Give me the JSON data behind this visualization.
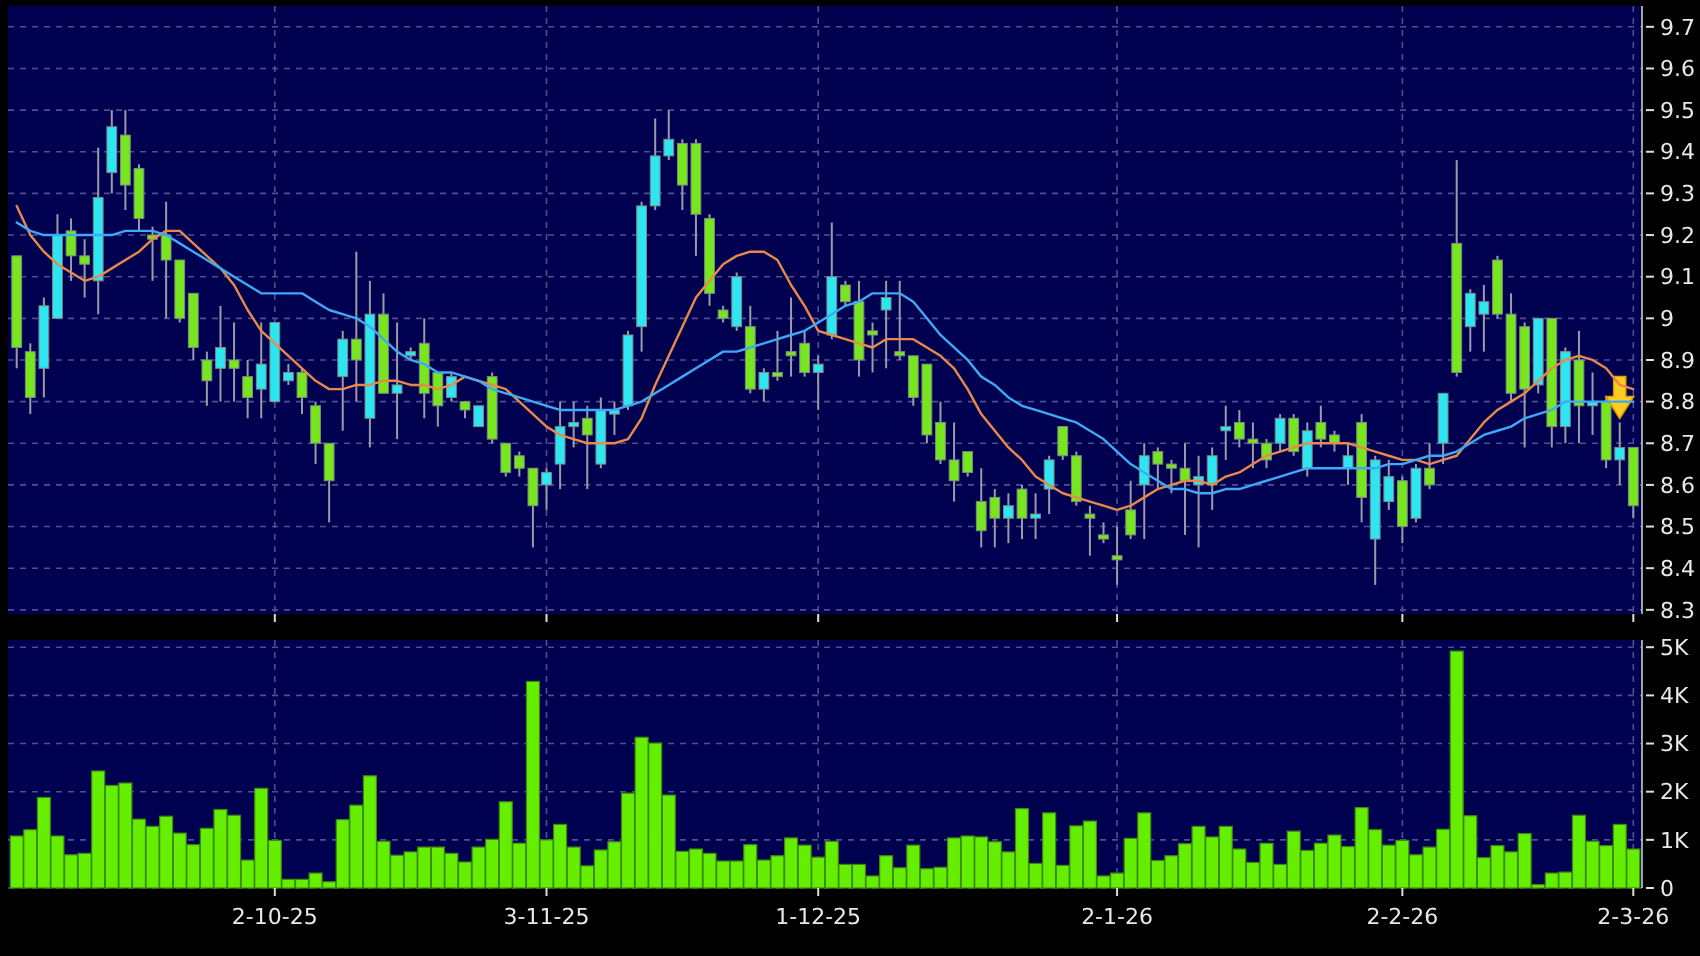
{
  "chart_data": [
    {
      "type": "candlestick",
      "categories": [
        null,
        null,
        null,
        null,
        null,
        null,
        null,
        null,
        null,
        null,
        null,
        null,
        null,
        null,
        null,
        null,
        null,
        null,
        null,
        null,
        null,
        null,
        null,
        null,
        null,
        null,
        null,
        null,
        null,
        null,
        null,
        null,
        null,
        null,
        null,
        null,
        null,
        null,
        null,
        null,
        null,
        null,
        null,
        null,
        null,
        null,
        null,
        null,
        null,
        null,
        null,
        null,
        null,
        null,
        null,
        null,
        null,
        null,
        null,
        null,
        null,
        null,
        null,
        null,
        null,
        null,
        null,
        null,
        null,
        null,
        null,
        null,
        null,
        null,
        null,
        null,
        null,
        null,
        null,
        null,
        null,
        null,
        null,
        null,
        null,
        null,
        null,
        null,
        null,
        null,
        null,
        null,
        null,
        null,
        null,
        null,
        null,
        null,
        null,
        null,
        null,
        null,
        null,
        null,
        null,
        null,
        null,
        null,
        null,
        null,
        null,
        null,
        null,
        null,
        null,
        null,
        null,
        null,
        null,
        null
      ],
      "ohlc": [
        [
          9.15,
          9.15,
          8.88,
          8.93
        ],
        [
          8.92,
          8.94,
          8.77,
          8.81
        ],
        [
          8.88,
          9.05,
          8.81,
          9.03
        ],
        [
          9.0,
          9.25,
          9.0,
          9.2
        ],
        [
          9.21,
          9.24,
          9.09,
          9.15
        ],
        [
          9.15,
          9.19,
          9.05,
          9.13
        ],
        [
          9.09,
          9.41,
          9.01,
          9.29
        ],
        [
          9.35,
          9.5,
          9.3,
          9.46
        ],
        [
          9.44,
          9.5,
          9.26,
          9.32
        ],
        [
          9.36,
          9.37,
          9.21,
          9.24
        ],
        [
          9.2,
          9.22,
          9.09,
          9.19
        ],
        [
          9.2,
          9.28,
          9.0,
          9.14
        ],
        [
          9.14,
          9.14,
          8.99,
          9.0
        ],
        [
          9.06,
          9.06,
          8.9,
          8.93
        ],
        [
          8.9,
          8.92,
          8.79,
          8.85
        ],
        [
          8.88,
          9.03,
          8.8,
          8.93
        ],
        [
          8.9,
          8.99,
          8.8,
          8.88
        ],
        [
          8.86,
          8.9,
          8.76,
          8.81
        ],
        [
          8.83,
          8.99,
          8.76,
          8.89
        ],
        [
          8.8,
          8.99,
          8.8,
          8.99
        ],
        [
          8.85,
          8.89,
          8.84,
          8.87
        ],
        [
          8.87,
          8.88,
          8.77,
          8.81
        ],
        [
          8.79,
          8.8,
          8.65,
          8.7
        ],
        [
          8.7,
          8.7,
          8.51,
          8.61
        ],
        [
          8.86,
          8.97,
          8.73,
          8.95
        ],
        [
          8.95,
          9.16,
          8.8,
          8.9
        ],
        [
          8.76,
          9.09,
          8.69,
          9.01
        ],
        [
          9.01,
          9.06,
          8.82,
          8.82
        ],
        [
          8.82,
          8.99,
          8.71,
          8.84
        ],
        [
          8.91,
          8.93,
          8.9,
          8.92
        ],
        [
          8.94,
          9.0,
          8.76,
          8.82
        ],
        [
          8.87,
          8.87,
          8.74,
          8.79
        ],
        [
          8.81,
          8.87,
          8.8,
          8.86
        ],
        [
          8.8,
          8.8,
          8.76,
          8.78
        ],
        [
          8.74,
          8.79,
          8.74,
          8.79
        ],
        [
          8.86,
          8.87,
          8.7,
          8.71
        ],
        [
          8.7,
          8.7,
          8.62,
          8.63
        ],
        [
          8.67,
          8.68,
          8.62,
          8.64
        ],
        [
          8.64,
          8.64,
          8.45,
          8.55
        ],
        [
          8.6,
          8.64,
          8.54,
          8.63
        ],
        [
          8.65,
          8.8,
          8.59,
          8.74
        ],
        [
          8.74,
          8.8,
          8.69,
          8.75
        ],
        [
          8.76,
          8.79,
          8.59,
          8.72
        ],
        [
          8.65,
          8.81,
          8.64,
          8.78
        ],
        [
          8.77,
          8.8,
          8.72,
          8.78
        ],
        [
          8.79,
          8.97,
          8.78,
          8.96
        ],
        [
          8.98,
          9.28,
          8.92,
          9.27
        ],
        [
          9.27,
          9.48,
          9.26,
          9.39
        ],
        [
          9.39,
          9.5,
          9.38,
          9.43
        ],
        [
          9.42,
          9.43,
          9.26,
          9.32
        ],
        [
          9.42,
          9.43,
          9.15,
          9.25
        ],
        [
          9.24,
          9.25,
          9.03,
          9.06
        ],
        [
          9.02,
          9.03,
          8.99,
          9.0
        ],
        [
          8.98,
          9.11,
          8.97,
          9.1
        ],
        [
          8.98,
          9.03,
          8.82,
          8.83
        ],
        [
          8.83,
          8.88,
          8.8,
          8.87
        ],
        [
          8.87,
          8.97,
          8.85,
          8.86
        ],
        [
          8.92,
          9.05,
          8.86,
          8.91
        ],
        [
          8.94,
          8.97,
          8.86,
          8.87
        ],
        [
          8.87,
          8.91,
          8.78,
          8.89
        ],
        [
          8.96,
          9.23,
          8.95,
          9.1
        ],
        [
          9.08,
          9.09,
          9.03,
          9.04
        ],
        [
          9.04,
          9.09,
          8.86,
          8.9
        ],
        [
          8.97,
          8.99,
          8.87,
          8.96
        ],
        [
          9.02,
          9.09,
          8.88,
          9.05
        ],
        [
          8.92,
          9.09,
          8.9,
          8.91
        ],
        [
          8.91,
          8.91,
          8.79,
          8.81
        ],
        [
          8.89,
          8.89,
          8.7,
          8.72
        ],
        [
          8.75,
          8.8,
          8.65,
          8.66
        ],
        [
          8.66,
          8.75,
          8.56,
          8.61
        ],
        [
          8.68,
          8.68,
          8.62,
          8.63
        ],
        [
          8.56,
          8.64,
          8.45,
          8.49
        ],
        [
          8.57,
          8.59,
          8.45,
          8.52
        ],
        [
          8.52,
          8.58,
          8.46,
          8.55
        ],
        [
          8.59,
          8.6,
          8.47,
          8.52
        ],
        [
          8.52,
          8.58,
          8.47,
          8.53
        ],
        [
          8.59,
          8.67,
          8.53,
          8.66
        ],
        [
          8.74,
          8.74,
          8.66,
          8.67
        ],
        [
          8.67,
          8.68,
          8.55,
          8.56
        ],
        [
          8.53,
          8.55,
          8.43,
          8.52
        ],
        [
          8.48,
          8.51,
          8.46,
          8.47
        ],
        [
          8.43,
          8.5,
          8.36,
          8.42
        ],
        [
          8.54,
          8.61,
          8.47,
          8.48
        ],
        [
          8.6,
          8.7,
          8.47,
          8.67
        ],
        [
          8.68,
          8.69,
          8.59,
          8.65
        ],
        [
          8.65,
          8.66,
          8.58,
          8.64
        ],
        [
          8.64,
          8.7,
          8.48,
          8.61
        ],
        [
          8.6,
          8.67,
          8.45,
          8.62
        ],
        [
          8.6,
          8.69,
          8.54,
          8.67
        ],
        [
          8.73,
          8.79,
          8.66,
          8.74
        ],
        [
          8.75,
          8.78,
          8.69,
          8.71
        ],
        [
          8.71,
          8.75,
          8.64,
          8.7
        ],
        [
          8.7,
          8.71,
          8.64,
          8.66
        ],
        [
          8.7,
          8.77,
          8.68,
          8.76
        ],
        [
          8.76,
          8.77,
          8.67,
          8.68
        ],
        [
          8.64,
          8.75,
          8.62,
          8.73
        ],
        [
          8.75,
          8.79,
          8.69,
          8.71
        ],
        [
          8.72,
          8.73,
          8.68,
          8.7
        ],
        [
          8.64,
          8.7,
          8.6,
          8.67
        ],
        [
          8.75,
          8.77,
          8.51,
          8.57
        ],
        [
          8.47,
          8.67,
          8.36,
          8.66
        ],
        [
          8.56,
          8.66,
          8.54,
          8.62
        ],
        [
          8.61,
          8.62,
          8.46,
          8.5
        ],
        [
          8.52,
          8.65,
          8.51,
          8.64
        ],
        [
          8.64,
          8.7,
          8.59,
          8.6
        ],
        [
          8.7,
          8.82,
          8.65,
          8.82
        ],
        [
          9.18,
          9.38,
          8.86,
          8.87
        ],
        [
          8.98,
          9.07,
          8.92,
          9.06
        ],
        [
          9.01,
          9.08,
          8.92,
          9.04
        ],
        [
          9.14,
          9.15,
          9.0,
          9.01
        ],
        [
          9.01,
          9.06,
          8.8,
          8.82
        ],
        [
          8.98,
          8.99,
          8.69,
          8.83
        ],
        [
          8.84,
          9.0,
          8.82,
          9.0
        ],
        [
          9.0,
          9.0,
          8.69,
          8.74
        ],
        [
          8.74,
          8.93,
          8.7,
          8.92
        ],
        [
          8.9,
          8.97,
          8.7,
          8.79
        ],
        [
          8.79,
          8.87,
          8.72,
          8.8
        ],
        [
          8.8,
          8.81,
          8.64,
          8.66
        ],
        [
          8.66,
          8.75,
          8.6,
          8.69
        ],
        [
          8.69,
          8.69,
          8.52,
          8.55
        ]
      ],
      "colors": [
        "#77e61e",
        "#77e61e",
        "#2de6f2",
        "#2de6f2",
        "#77e61e",
        "#77e61e",
        "#2de6f2",
        "#2de6f2",
        "#77e61e",
        "#77e61e",
        "#77e61e",
        "#77e61e",
        "#77e61e",
        "#77e61e",
        "#77e61e",
        "#2de6f2",
        "#77e61e",
        "#77e61e",
        "#2de6f2",
        "#2de6f2",
        "#2de6f2",
        "#77e61e",
        "#77e61e",
        "#77e61e",
        "#2de6f2",
        "#77e61e",
        "#2de6f2",
        "#77e61e",
        "#2de6f2",
        "#2de6f2",
        "#77e61e",
        "#77e61e",
        "#2de6f2",
        "#77e61e",
        "#2de6f2",
        "#77e61e",
        "#77e61e",
        "#77e61e",
        "#77e61e",
        "#2de6f2",
        "#2de6f2",
        "#2de6f2",
        "#77e61e",
        "#2de6f2",
        "#2de6f2",
        "#2de6f2",
        "#2de6f2",
        "#2de6f2",
        "#2de6f2",
        "#77e61e",
        "#77e61e",
        "#77e61e",
        "#77e61e",
        "#2de6f2",
        "#77e61e",
        "#2de6f2",
        "#77e61e",
        "#77e61e",
        "#77e61e",
        "#2de6f2",
        "#2de6f2",
        "#77e61e",
        "#77e61e",
        "#77e61e",
        "#2de6f2",
        "#77e61e",
        "#77e61e",
        "#77e61e",
        "#77e61e",
        "#77e61e",
        "#77e61e",
        "#77e61e",
        "#77e61e",
        "#2de6f2",
        "#77e61e",
        "#2de6f2",
        "#2de6f2",
        "#77e61e",
        "#77e61e",
        "#77e61e",
        "#77e61e",
        "#77e61e",
        "#77e61e",
        "#2de6f2",
        "#77e61e",
        "#77e61e",
        "#77e61e",
        "#2de6f2",
        "#2de6f2",
        "#2de6f2",
        "#77e61e",
        "#77e61e",
        "#77e61e",
        "#2de6f2",
        "#77e61e",
        "#2de6f2",
        "#77e61e",
        "#77e61e",
        "#2de6f2",
        "#77e61e",
        "#2de6f2",
        "#2de6f2",
        "#77e61e",
        "#2de6f2",
        "#77e61e",
        "#2de6f2",
        "#77e61e",
        "#2de6f2",
        "#2de6f2",
        "#77e61e",
        "#77e61e",
        "#77e61e",
        "#2de6f2",
        "#77e61e",
        "#2de6f2",
        "#77e61e",
        "#2de6f2",
        "#77e61e",
        "#2de6f2",
        "#77e61e"
      ],
      "series": [
        {
          "type": "line",
          "color": "#e8884a",
          "values": [
            9.27,
            9.2,
            9.16,
            9.13,
            9.11,
            9.09,
            9.1,
            9.12,
            9.14,
            9.16,
            9.19,
            9.21,
            9.21,
            9.18,
            9.15,
            9.12,
            9.08,
            9.02,
            8.97,
            8.94,
            8.91,
            8.88,
            8.85,
            8.83,
            8.83,
            8.84,
            8.84,
            8.85,
            8.85,
            8.84,
            8.84,
            8.83,
            8.84,
            8.86,
            8.85,
            8.84,
            8.83,
            8.8,
            8.77,
            8.74,
            8.72,
            8.71,
            8.7,
            8.7,
            8.7,
            8.71,
            8.76,
            8.84,
            8.91,
            8.98,
            9.05,
            9.09,
            9.13,
            9.15,
            9.16,
            9.16,
            9.14,
            9.08,
            9.03,
            8.97,
            8.96,
            8.95,
            8.94,
            8.93,
            8.95,
            8.95,
            8.95,
            8.93,
            8.91,
            8.88,
            8.83,
            8.77,
            8.73,
            8.69,
            8.66,
            8.62,
            8.6,
            8.58,
            8.57,
            8.56,
            8.55,
            8.54,
            8.55,
            8.57,
            8.59,
            8.6,
            8.61,
            8.61,
            8.6,
            8.62,
            8.63,
            8.65,
            8.67,
            8.68,
            8.69,
            8.7,
            8.7,
            8.7,
            8.7,
            8.69,
            8.68,
            8.67,
            8.66,
            8.66,
            8.65,
            8.66,
            8.67,
            8.71,
            8.75,
            8.78,
            8.8,
            8.82,
            8.85,
            8.88,
            8.9,
            8.91,
            8.9,
            8.88,
            8.84,
            8.83
          ]
        },
        {
          "type": "line",
          "color": "#3fa9f5",
          "values": [
            9.23,
            9.21,
            9.2,
            9.2,
            9.2,
            9.2,
            9.2,
            9.2,
            9.21,
            9.21,
            9.21,
            9.2,
            9.18,
            9.16,
            9.14,
            9.12,
            9.1,
            9.08,
            9.06,
            9.06,
            9.06,
            9.06,
            9.04,
            9.02,
            9.01,
            9.0,
            8.98,
            8.95,
            8.92,
            8.9,
            8.89,
            8.87,
            8.87,
            8.86,
            8.85,
            8.83,
            8.82,
            8.81,
            8.8,
            8.79,
            8.78,
            8.78,
            8.78,
            8.78,
            8.78,
            8.79,
            8.8,
            8.82,
            8.84,
            8.86,
            8.88,
            8.9,
            8.92,
            8.92,
            8.93,
            8.94,
            8.95,
            8.96,
            8.97,
            8.99,
            9.01,
            9.03,
            9.04,
            9.06,
            9.06,
            9.06,
            9.04,
            9.0,
            8.96,
            8.93,
            8.9,
            8.86,
            8.84,
            8.81,
            8.79,
            8.78,
            8.77,
            8.76,
            8.75,
            8.73,
            8.71,
            8.68,
            8.65,
            8.63,
            8.61,
            8.59,
            8.59,
            8.58,
            8.58,
            8.59,
            8.59,
            8.6,
            8.61,
            8.62,
            8.63,
            8.64,
            8.64,
            8.64,
            8.64,
            8.64,
            8.64,
            8.65,
            8.65,
            8.66,
            8.67,
            8.67,
            8.68,
            8.7,
            8.72,
            8.73,
            8.74,
            8.76,
            8.77,
            8.78,
            8.8,
            8.8,
            8.8,
            8.8,
            8.8,
            8.8
          ]
        }
      ],
      "ylim": [
        8.29,
        9.75
      ],
      "yticks": [
        8.3,
        8.4,
        8.5,
        8.6,
        8.7,
        8.8,
        8.9,
        9,
        9.1,
        9.2,
        9.3,
        9.4,
        9.5,
        9.6,
        9.7
      ],
      "grid": true,
      "tick_labels": "y"
    },
    {
      "type": "bar",
      "categories": [
        null,
        null,
        null,
        null,
        null,
        null,
        null,
        null,
        null,
        null,
        null,
        null,
        null,
        null,
        null,
        null,
        null,
        null,
        null,
        "2-10-25",
        null,
        null,
        null,
        null,
        null,
        null,
        null,
        null,
        null,
        null,
        null,
        null,
        null,
        null,
        null,
        null,
        null,
        null,
        null,
        "3-11-25",
        null,
        null,
        null,
        null,
        null,
        null,
        null,
        null,
        null,
        null,
        null,
        null,
        null,
        null,
        null,
        null,
        null,
        null,
        null,
        "1-12-25",
        null,
        null,
        null,
        null,
        null,
        null,
        null,
        null,
        null,
        null,
        null,
        null,
        null,
        null,
        null,
        null,
        null,
        null,
        null,
        null,
        null,
        "2-1-26",
        null,
        null,
        null,
        null,
        null,
        null,
        null,
        null,
        null,
        null,
        null,
        null,
        null,
        null,
        null,
        null,
        null,
        null,
        null,
        null,
        "2-2-26",
        null,
        null,
        null,
        null,
        null,
        null,
        null,
        null,
        null,
        null,
        null,
        null,
        null,
        null,
        null,
        null,
        "2-3-26"
      ],
      "values": [
        1080,
        1210,
        1880,
        1080,
        690,
        720,
        2430,
        2130,
        2180,
        1430,
        1280,
        1490,
        1140,
        900,
        1240,
        1630,
        1510,
        580,
        2070,
        990,
        180,
        180,
        310,
        130,
        1420,
        1720,
        2330,
        970,
        680,
        750,
        850,
        850,
        720,
        540,
        850,
        1010,
        1790,
        930,
        4290,
        1000,
        1320,
        850,
        460,
        790,
        960,
        1970,
        3130,
        3010,
        1930,
        760,
        810,
        720,
        560,
        560,
        900,
        580,
        670,
        1040,
        890,
        640,
        970,
        490,
        490,
        250,
        670,
        420,
        890,
        400,
        430,
        1040,
        1080,
        1060,
        960,
        750,
        1650,
        510,
        1560,
        470,
        1290,
        1390,
        250,
        310,
        1030,
        1560,
        570,
        670,
        920,
        1280,
        1060,
        1280,
        810,
        530,
        930,
        490,
        1180,
        780,
        930,
        1100,
        860,
        1670,
        1210,
        890,
        990,
        690,
        850,
        1220,
        4920,
        1500,
        630,
        880,
        750,
        1130,
        70,
        310,
        330,
        1510,
        970,
        880,
        1320,
        810
      ],
      "color": "#66ee00",
      "ylim": [
        0,
        5150
      ],
      "yticks": [
        0,
        {
          "value": 1000,
          "label": "1K"
        },
        {
          "value": 2000,
          "label": "2K"
        },
        {
          "value": 3000,
          "label": "3K"
        },
        {
          "value": 4000,
          "label": "4K"
        },
        {
          "value": 5000,
          "label": "5K"
        }
      ],
      "grid": true
    }
  ]
}
